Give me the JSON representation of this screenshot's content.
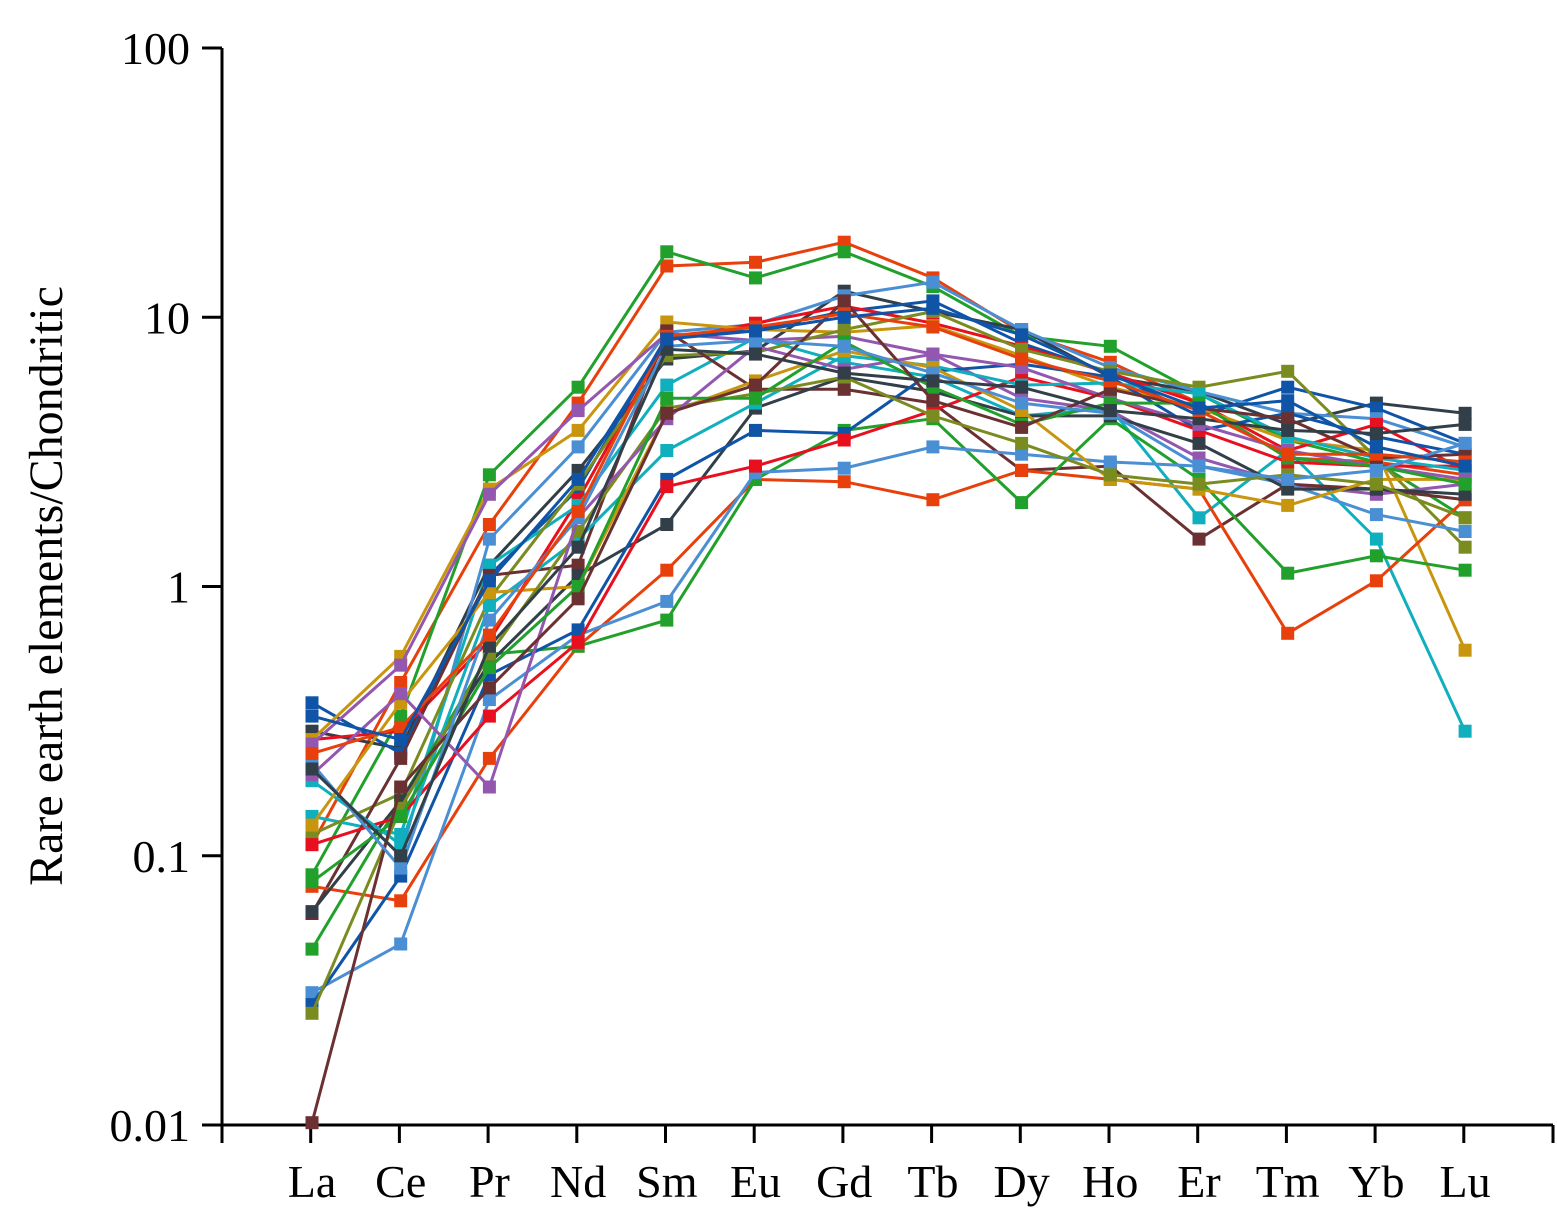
{
  "chart_data": {
    "type": "line",
    "title": "",
    "xlabel": "",
    "ylabel": "Rare earth elements/Chondritic",
    "yscale": "log",
    "ylim": [
      0.01,
      100
    ],
    "yticks": [
      "0.01",
      "0.1",
      "1",
      "10",
      "100"
    ],
    "ytick_values": [
      0.01,
      0.1,
      1,
      10,
      100
    ],
    "categories": [
      "La",
      "Ce",
      "Pr",
      "Nd",
      "Sm",
      "Eu",
      "Gd",
      "Tb",
      "Dy",
      "Ho",
      "Er",
      "Tm",
      "Yb",
      "Lu"
    ],
    "grid": false,
    "legend": "none",
    "series": [
      {
        "color": "#E8400C",
        "values": [
          0.11,
          0.44,
          1.7,
          4.8,
          15.5,
          16,
          19,
          14,
          8.8,
          6.8,
          4.8,
          3.0,
          2.9,
          2.6
        ]
      },
      {
        "color": "#22A02C",
        "values": [
          0.085,
          0.33,
          2.6,
          5.5,
          17.5,
          14,
          17.5,
          13,
          8.5,
          7.8,
          5.2,
          3.5,
          2.9,
          1.8
        ]
      },
      {
        "color": "#333F48",
        "values": [
          0.29,
          0.25,
          1.2,
          2.7,
          7.0,
          7.5,
          12.5,
          10.5,
          9.0,
          6.0,
          5.3,
          4.0,
          4.8,
          4.4
        ]
      },
      {
        "color": "#0F54A6",
        "values": [
          0.37,
          0.24,
          1.1,
          2.3,
          8.5,
          9.0,
          10.5,
          11.5,
          8.0,
          6.2,
          4.3,
          5.5,
          4.6,
          3.4
        ]
      },
      {
        "color": "#4A8FD3",
        "values": [
          0.21,
          0.1,
          1.5,
          3.3,
          8.8,
          9.4,
          12.0,
          13.5,
          9.0,
          6.5,
          5.3,
          4.4,
          4.2,
          3.3
        ]
      },
      {
        "color": "#E8101E",
        "values": [
          0.27,
          0.29,
          0.63,
          2.1,
          8.2,
          9.5,
          11.0,
          9.5,
          7.8,
          6.2,
          4.8,
          3.2,
          4.0,
          2.7
        ]
      },
      {
        "color": "#C8960E",
        "values": [
          0.27,
          0.55,
          2.3,
          3.8,
          9.6,
          9.0,
          8.8,
          9.3,
          7.2,
          5.5,
          4.6,
          3.5,
          3.2,
          0.58
        ]
      },
      {
        "color": "#9457B0",
        "values": [
          0.26,
          0.51,
          2.2,
          4.5,
          8.7,
          8.2,
          8.5,
          7.3,
          5.0,
          4.5,
          3.0,
          2.4,
          2.2,
          2.4
        ]
      },
      {
        "color": "#0FAFBE",
        "values": [
          0.14,
          0.12,
          1.2,
          2.0,
          5.6,
          8.4,
          6.8,
          6.0,
          4.3,
          4.6,
          1.8,
          3.2,
          1.5,
          0.29
        ]
      },
      {
        "color": "#7A8C20",
        "values": [
          0.12,
          0.17,
          0.9,
          2.4,
          7.2,
          7.4,
          9.0,
          10.5,
          7.6,
          6.3,
          5.5,
          6.3,
          3.0,
          1.4
        ]
      },
      {
        "color": "#6B3032",
        "values": [
          0.061,
          0.23,
          1.1,
          1.2,
          8.9,
          5.4,
          5.4,
          4.8,
          2.7,
          2.8,
          1.5,
          2.4,
          2.3,
          2.1
        ]
      },
      {
        "color": "#E8400C",
        "values": [
          0.077,
          0.068,
          0.23,
          0.6,
          1.15,
          2.5,
          2.45,
          2.1,
          2.7,
          2.5,
          2.3,
          0.67,
          1.05,
          2.1
        ]
      },
      {
        "color": "#22A02C",
        "values": [
          0.045,
          0.16,
          0.56,
          0.6,
          0.75,
          2.5,
          3.8,
          4.2,
          2.05,
          4.2,
          2.5,
          1.12,
          1.3,
          1.15
        ]
      },
      {
        "color": "#4A8FD3",
        "values": [
          0.031,
          0.047,
          0.38,
          0.66,
          0.88,
          2.65,
          2.75,
          3.3,
          3.1,
          2.9,
          2.8,
          2.4,
          1.85,
          1.6
        ]
      },
      {
        "color": "#333F48",
        "values": [
          0.062,
          0.16,
          0.52,
          1.1,
          1.7,
          4.6,
          6.0,
          5.3,
          4.3,
          4.3,
          3.4,
          2.3,
          2.3,
          2.2
        ]
      },
      {
        "color": "#0F54A6",
        "values": [
          0.028,
          0.084,
          0.47,
          0.69,
          2.5,
          3.8,
          3.7,
          6.3,
          6.7,
          6.0,
          3.8,
          4.4,
          3.6,
          3.1
        ]
      },
      {
        "color": "#E8101E",
        "values": [
          0.11,
          0.14,
          0.33,
          0.62,
          2.35,
          2.8,
          3.5,
          4.5,
          6.0,
          5.0,
          3.8,
          2.9,
          2.8,
          2.8
        ]
      },
      {
        "color": "#0FAFBE",
        "values": [
          0.19,
          0.11,
          0.85,
          1.5,
          3.2,
          4.8,
          7.2,
          6.6,
          5.6,
          5.7,
          5.2,
          3.6,
          3.0,
          2.7
        ]
      },
      {
        "color": "#C8960E",
        "values": [
          0.13,
          0.37,
          0.95,
          1.0,
          4.4,
          5.8,
          7.5,
          6.5,
          4.5,
          2.5,
          2.3,
          2.0,
          2.5,
          2.5
        ]
      },
      {
        "color": "#7A8C20",
        "values": [
          0.026,
          0.15,
          0.56,
          1.6,
          4.6,
          5.2,
          6.0,
          4.3,
          3.4,
          2.6,
          2.4,
          2.6,
          2.4,
          1.8
        ]
      },
      {
        "color": "#9457B0",
        "values": [
          0.2,
          0.4,
          0.18,
          1.8,
          4.2,
          7.8,
          6.4,
          7.3,
          6.5,
          5.0,
          4.0,
          3.2,
          2.8,
          2.5
        ]
      },
      {
        "color": "#22A02C",
        "values": [
          0.08,
          0.14,
          0.5,
          1.0,
          5.0,
          5.0,
          8.1,
          5.5,
          4.0,
          4.8,
          4.8,
          3.0,
          2.8,
          2.4
        ]
      },
      {
        "color": "#6B3032",
        "values": [
          0.0102,
          0.18,
          0.42,
          0.9,
          4.4,
          5.6,
          11.5,
          4.9,
          3.9,
          5.4,
          4.6,
          4.2,
          3.0,
          3.1
        ]
      },
      {
        "color": "#4A8FD3",
        "values": [
          0.22,
          0.09,
          0.75,
          1.8,
          7.8,
          8.2,
          7.8,
          6.2,
          4.8,
          4.4,
          2.8,
          2.5,
          2.7,
          3.4
        ]
      },
      {
        "color": "#333F48",
        "values": [
          0.21,
          0.1,
          0.6,
          1.4,
          7.6,
          7.3,
          6.2,
          5.8,
          5.5,
          4.5,
          4.2,
          3.8,
          3.7,
          4.0
        ]
      },
      {
        "color": "#E8400C",
        "values": [
          0.24,
          0.3,
          0.66,
          1.9,
          8.5,
          9.2,
          10.3,
          9.2,
          7.0,
          5.8,
          4.5,
          3.1,
          3.1,
          2.9
        ]
      },
      {
        "color": "#0F54A6",
        "values": [
          0.33,
          0.27,
          1.05,
          2.5,
          8.3,
          8.9,
          10.0,
          10.8,
          8.6,
          6.1,
          4.6,
          4.9,
          3.3,
          2.8
        ]
      }
    ]
  }
}
